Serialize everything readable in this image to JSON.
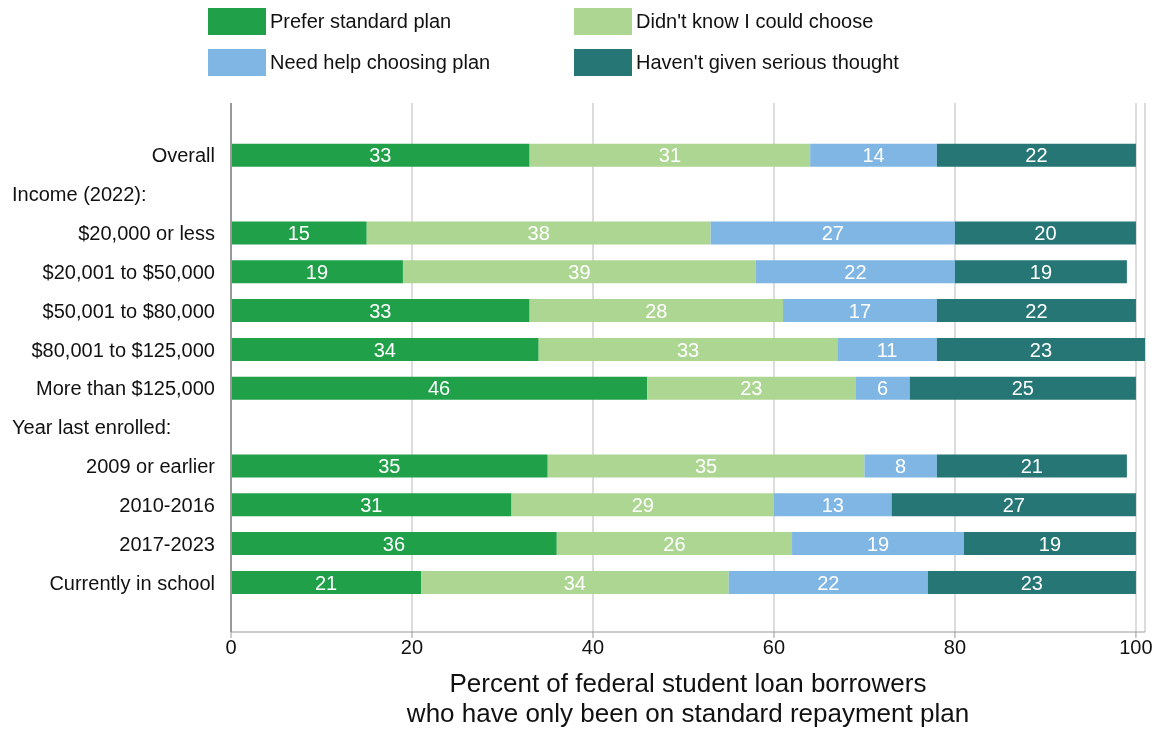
{
  "chart_data": {
    "type": "bar",
    "orientation": "horizontal",
    "stacked": true,
    "xlabel": "Percent of federal student loan borrowers\nwho have only been on standard repayment plan",
    "categories": [
      "Overall",
      null,
      "$20,000 or less",
      "$20,001 to $50,000",
      "$50,001 to $80,000",
      "$80,001 to $125,000",
      "More than $125,000",
      null,
      "2009 or earlier",
      "2010-2016",
      "2017-2023",
      "Currently in school"
    ],
    "annotations": [
      "Income (2022):",
      "Year last enrolled:"
    ],
    "series": [
      {
        "name": "Prefer standard plan",
        "color": "#21a04a",
        "values": [
          33,
          null,
          15,
          19,
          33,
          34,
          46,
          null,
          35,
          31,
          36,
          21
        ]
      },
      {
        "name": "Didn't know I could choose",
        "color": "#aed693",
        "values": [
          31,
          null,
          38,
          39,
          28,
          33,
          23,
          null,
          35,
          29,
          26,
          34
        ]
      },
      {
        "name": "Need help choosing plan",
        "color": "#7fb6e3",
        "values": [
          14,
          null,
          27,
          22,
          17,
          11,
          6,
          null,
          8,
          13,
          19,
          22
        ]
      },
      {
        "name": "Haven't given serious thought",
        "color": "#267676",
        "values": [
          22,
          null,
          20,
          19,
          22,
          23,
          25,
          null,
          21,
          27,
          19,
          23
        ]
      }
    ],
    "xlim": [
      0,
      101
    ],
    "xticks": [
      0,
      20,
      40,
      60,
      80,
      100
    ],
    "grid": "x",
    "legend": "top",
    "data_labels": true
  }
}
